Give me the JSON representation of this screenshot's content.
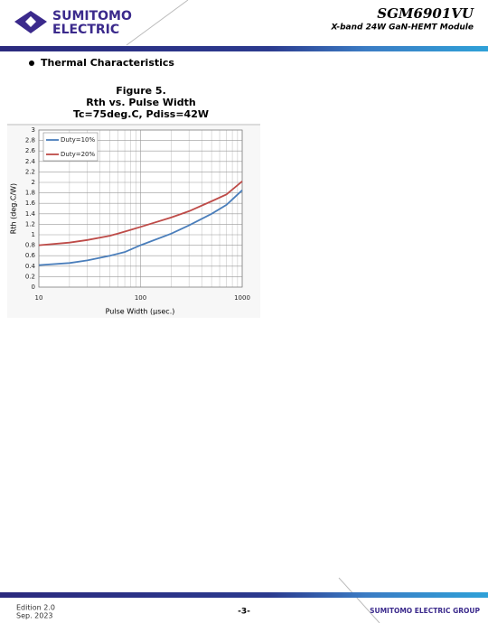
{
  "header": {
    "logo": [
      "SUMITOMO",
      "ELECTRIC"
    ],
    "product": "SGM6901VU",
    "description": "X-band 24W GaN-HEMT Module"
  },
  "section": "Thermal Characteristics",
  "chart_data": {
    "type": "line",
    "title": [
      "Figure 5.",
      "Rth vs. Pulse Width",
      "Tc=75deg.C, Pdiss=42W"
    ],
    "x_label": "Pulse Width (μsec.)",
    "y_label": "Rth (deg.C/W)",
    "x": [
      10,
      20,
      30,
      50,
      70,
      100,
      200,
      300,
      500,
      700,
      1000
    ],
    "series": [
      {
        "name": "Duty=10%",
        "color": "#4a7ebb",
        "values": [
          0.42,
          0.46,
          0.51,
          0.6,
          0.67,
          0.8,
          1.02,
          1.18,
          1.4,
          1.57,
          1.85
        ]
      },
      {
        "name": "Duty=20%",
        "color": "#be4b48",
        "values": [
          0.8,
          0.85,
          0.9,
          0.98,
          1.06,
          1.15,
          1.33,
          1.45,
          1.64,
          1.77,
          2.02
        ]
      }
    ],
    "xlog": true,
    "xlim": [
      10,
      1000
    ],
    "xticks": [
      10,
      100,
      1000
    ],
    "xminorticks": [
      20,
      30,
      40,
      50,
      60,
      70,
      80,
      90,
      200,
      300,
      400,
      500,
      600,
      700,
      800,
      900
    ],
    "ylim": [
      0,
      3
    ],
    "yticks": [
      0,
      0.2,
      0.4,
      0.6,
      0.8,
      1,
      1.2,
      1.4,
      1.6,
      1.8,
      2,
      2.2,
      2.4,
      2.6,
      2.8,
      3
    ],
    "grid": true,
    "legend": "upper left"
  },
  "footer": {
    "edition": "Edition 2.0",
    "date": "Sep. 2023",
    "page": "-3-",
    "company": "SUMITOMO ELECTRIC GROUP"
  }
}
